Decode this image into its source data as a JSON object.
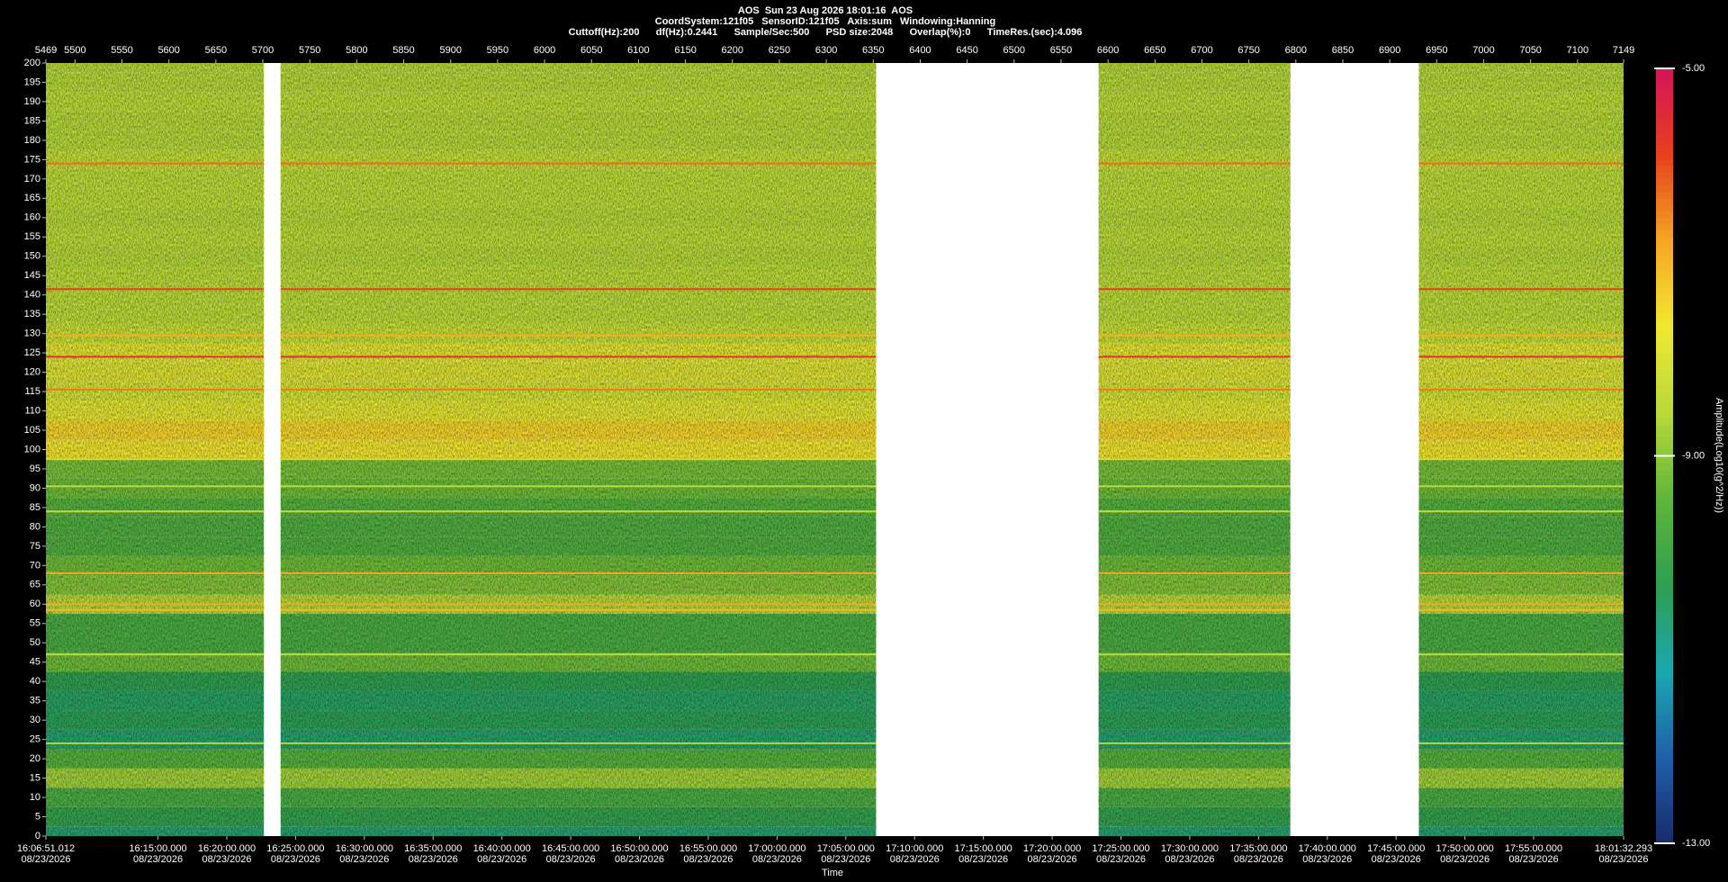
{
  "chart_data": {
    "type": "spectrogram",
    "title": "AOS  Sun 23 Aug 2026 18:01:16  AOS",
    "subtitle": [
      "CoordSystem:121f05   SensorID:121f05   Axis:sum   Windowing:Hanning",
      "Cuttoff(Hz):200      df(Hz):0.2441      Sample/Sec:500      PSD size:2048      Overlap(%):0      TimeRes.(sec):4.096"
    ],
    "xlabel": "Time",
    "colorbar_label": "Amplitude(Log10(g^2/Hz))",
    "xlim": [
      5469,
      7149
    ],
    "xticks": [
      5469,
      5500,
      5550,
      5600,
      5650,
      5700,
      5750,
      5800,
      5850,
      5900,
      5950,
      6000,
      6050,
      6100,
      6150,
      6200,
      6250,
      6300,
      6350,
      6400,
      6450,
      6500,
      6550,
      6600,
      6650,
      6700,
      6750,
      6800,
      6850,
      6900,
      6950,
      7000,
      7050,
      7100,
      7149
    ],
    "ylim": [
      0,
      200
    ],
    "yticks": [
      0,
      5,
      10,
      15,
      20,
      25,
      30,
      35,
      40,
      45,
      50,
      55,
      60,
      65,
      70,
      75,
      80,
      85,
      90,
      95,
      100,
      105,
      110,
      115,
      120,
      125,
      130,
      135,
      140,
      145,
      150,
      155,
      160,
      165,
      170,
      175,
      180,
      185,
      190,
      195,
      200
    ],
    "time_ticks": [
      {
        "time": "16:06:51.012",
        "date": "08/23/2026"
      },
      {
        "time": "16:15:00.000",
        "date": "08/23/2026"
      },
      {
        "time": "16:20:00.000",
        "date": "08/23/2026"
      },
      {
        "time": "16:25:00.000",
        "date": "08/23/2026"
      },
      {
        "time": "16:30:00.000",
        "date": "08/23/2026"
      },
      {
        "time": "16:35:00.000",
        "date": "08/23/2026"
      },
      {
        "time": "16:40:00.000",
        "date": "08/23/2026"
      },
      {
        "time": "16:45:00.000",
        "date": "08/23/2026"
      },
      {
        "time": "16:50:00.000",
        "date": "08/23/2026"
      },
      {
        "time": "16:55:00.000",
        "date": "08/23/2026"
      },
      {
        "time": "17:00:00.000",
        "date": "08/23/2026"
      },
      {
        "time": "17:05:00.000",
        "date": "08/23/2026"
      },
      {
        "time": "17:10:00.000",
        "date": "08/23/2026"
      },
      {
        "time": "17:15:00.000",
        "date": "08/23/2026"
      },
      {
        "time": "17:20:00.000",
        "date": "08/23/2026"
      },
      {
        "time": "17:25:00.000",
        "date": "08/23/2026"
      },
      {
        "time": "17:30:00.000",
        "date": "08/23/2026"
      },
      {
        "time": "17:35:00.000",
        "date": "08/23/2026"
      },
      {
        "time": "17:40:00.000",
        "date": "08/23/2026"
      },
      {
        "time": "17:45:00.000",
        "date": "08/23/2026"
      },
      {
        "time": "17:50:00.000",
        "date": "08/23/2026"
      },
      {
        "time": "17:55:00.000",
        "date": "08/23/2026"
      },
      {
        "time": "18:01:32.293",
        "date": "08/23/2026"
      }
    ],
    "clim": [
      -13,
      -5
    ],
    "cticks": [
      {
        "value": -13,
        "label": "-13.00"
      },
      {
        "value": -9,
        "label": "-9.00"
      },
      {
        "value": -5,
        "label": "-5.00"
      }
    ],
    "colormap": [
      "#1b2a6b",
      "#1f5fa8",
      "#1aa7b0",
      "#2e9e50",
      "#5fb53a",
      "#b9d93a",
      "#f0e830",
      "#f5a623",
      "#e8401c",
      "#d4145a"
    ],
    "segments": [
      [
        5469,
        5701
      ],
      [
        5719,
        6353
      ],
      [
        6590,
        6794
      ],
      [
        6931,
        7149
      ]
    ],
    "frequencies": [
      0,
      5,
      10,
      15,
      20,
      25,
      30,
      35,
      40,
      45,
      50,
      55,
      60,
      65,
      70,
      75,
      80,
      85,
      90,
      95,
      100,
      105,
      110,
      115,
      120,
      125,
      130,
      135,
      140,
      145,
      150,
      155,
      160,
      165,
      170,
      175,
      180,
      185,
      190,
      195,
      200
    ],
    "amplitude": [
      -10.6,
      -10.2,
      -9.8,
      -8.8,
      -9.6,
      -10.6,
      -10.4,
      -10.5,
      -10.3,
      -9.3,
      -9.8,
      -9.8,
      -8.6,
      -9.1,
      -9.3,
      -9.7,
      -9.7,
      -9.6,
      -9.3,
      -9.2,
      -7.6,
      -7.4,
      -7.9,
      -8.1,
      -8.0,
      -7.9,
      -8.3,
      -8.5,
      -8.5,
      -8.5,
      -8.6,
      -8.5,
      -8.6,
      -8.5,
      -8.5,
      -8.4,
      -8.6,
      -8.6,
      -8.5,
      -8.6,
      -8.6
    ],
    "tones": {
      "frequencies": [
        174,
        141.5,
        129.5,
        124,
        115.5,
        97.5,
        90.5,
        84,
        68,
        60,
        58.5,
        47,
        24
      ],
      "amplitude": [
        -6.3,
        -5.9,
        -6.9,
        -5.6,
        -6.4,
        -8.3,
        -8.5,
        -8.4,
        -6.8,
        -6.8,
        -7.0,
        -8.5,
        -8.6
      ]
    }
  }
}
